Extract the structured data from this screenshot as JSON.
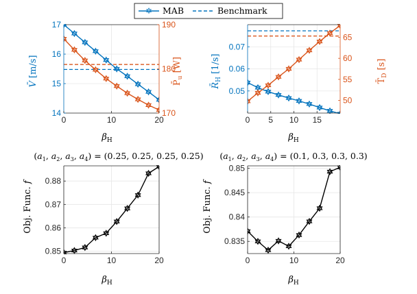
{
  "legend": {
    "mab_label": "MAB",
    "bench_label": "Benchmark"
  },
  "colors": {
    "blue": "#0072BD",
    "orange": "#D95319",
    "black": "#000000",
    "grid": "#e6e6e6"
  },
  "chart_data": [
    {
      "type": "line",
      "title": "",
      "xlabel": "β_H",
      "ylabel_left": "V̄ [m/s]",
      "ylabel_right": "P̄_u [W]",
      "xlim": [
        0,
        20
      ],
      "ylim_left": [
        14,
        17
      ],
      "ylim_right": [
        170,
        190
      ],
      "xticks": [
        "0",
        "10",
        "20"
      ],
      "yticks_left": [
        "14",
        "15",
        "16",
        "17"
      ],
      "yticks_right": [
        "170",
        "180",
        "190"
      ],
      "x": [
        0,
        2.22,
        4.44,
        6.67,
        8.89,
        11.11,
        13.33,
        15.56,
        17.78,
        20
      ],
      "series": [
        {
          "name": "MAB",
          "axis": "left",
          "color": "blue",
          "values": [
            17.0,
            16.7,
            16.4,
            16.1,
            15.8,
            15.5,
            15.25,
            14.98,
            14.72,
            14.45
          ]
        },
        {
          "name": "MAB",
          "axis": "right",
          "color": "orange",
          "values": [
            186.8,
            184.3,
            181.9,
            179.8,
            177.8,
            176.1,
            174.5,
            173.1,
            171.8,
            170.7
          ]
        }
      ],
      "benchmarks": [
        {
          "axis": "left",
          "color": "blue",
          "value": 15.48
        },
        {
          "axis": "right",
          "color": "orange",
          "value": 181.0
        }
      ],
      "grid": true
    },
    {
      "type": "line",
      "title": "",
      "xlabel": "β_H",
      "ylabel_left": "R̄_H [1/s]",
      "ylabel_right": "T̄_D [s]",
      "xlim": [
        0,
        20
      ],
      "ylim_left": [
        0.04,
        0.08
      ],
      "ylim_right": [
        47,
        68
      ],
      "xticks": [
        "0",
        "5",
        "10",
        "15"
      ],
      "yticks_left": [
        "0.05",
        "0.06",
        "0.07"
      ],
      "yticks_right": [
        "50",
        "55",
        "60",
        "65"
      ],
      "x": [
        0,
        2.22,
        4.44,
        6.67,
        8.89,
        11.11,
        13.33,
        15.56,
        17.78,
        20
      ],
      "series": [
        {
          "name": "MAB",
          "axis": "left",
          "color": "blue",
          "values": [
            0.0538,
            0.0515,
            0.0497,
            0.0482,
            0.0468,
            0.0455,
            0.0441,
            0.0425,
            0.041,
            0.0397
          ]
        },
        {
          "name": "MAB",
          "axis": "right",
          "color": "orange",
          "values": [
            49.8,
            51.8,
            53.6,
            55.6,
            57.5,
            59.7,
            61.9,
            64.0,
            66.0,
            67.8
          ]
        }
      ],
      "benchmarks": [
        {
          "axis": "left",
          "color": "blue",
          "value": 0.0772
        },
        {
          "axis": "right",
          "color": "orange",
          "value": 65.3
        }
      ],
      "grid": true
    },
    {
      "type": "line",
      "title": "(a1,a2,a3,a4) = (0.25,0.25,0.25,0.25)",
      "title_parts": {
        "lhs": "(a",
        "vals": "(0.25, 0.25, 0.25, 0.25)"
      },
      "xlabel": "β_H",
      "ylabel": "Obj. Func. f",
      "xlim": [
        0,
        20
      ],
      "ylim": [
        0.849,
        0.8865
      ],
      "xticks": [
        "0",
        "10",
        "20"
      ],
      "yticks": [
        "0.85",
        "0.86",
        "0.87",
        "0.88"
      ],
      "x": [
        0,
        2.22,
        4.44,
        6.67,
        8.89,
        11.11,
        13.33,
        15.56,
        17.78,
        20
      ],
      "series": [
        {
          "name": "",
          "color": "black",
          "values": [
            0.8494,
            0.8503,
            0.8516,
            0.8558,
            0.8577,
            0.8627,
            0.8683,
            0.874,
            0.8833,
            0.8862
          ]
        }
      ],
      "grid": true
    },
    {
      "type": "line",
      "title": "(a1,a2,a3,a4) = (0.1,0.3,0.3,0.3)",
      "title_parts": {
        "lhs": "(a",
        "vals": "(0.1, 0.3, 0.3, 0.3)"
      },
      "xlabel": "β_H",
      "ylabel": "Obj. Func. f",
      "xlim": [
        0,
        20
      ],
      "ylim": [
        0.8325,
        0.8505
      ],
      "xticks": [
        "0",
        "10",
        "20"
      ],
      "yticks": [
        "0.835",
        "0.84",
        "0.845",
        "0.85"
      ],
      "x": [
        0,
        2.22,
        4.44,
        6.67,
        8.89,
        11.11,
        13.33,
        15.56,
        17.78,
        20
      ],
      "series": [
        {
          "name": "",
          "color": "black",
          "values": [
            0.8371,
            0.835,
            0.8332,
            0.8351,
            0.834,
            0.8363,
            0.8391,
            0.8418,
            0.8493,
            0.8502
          ]
        }
      ],
      "grid": true
    }
  ]
}
